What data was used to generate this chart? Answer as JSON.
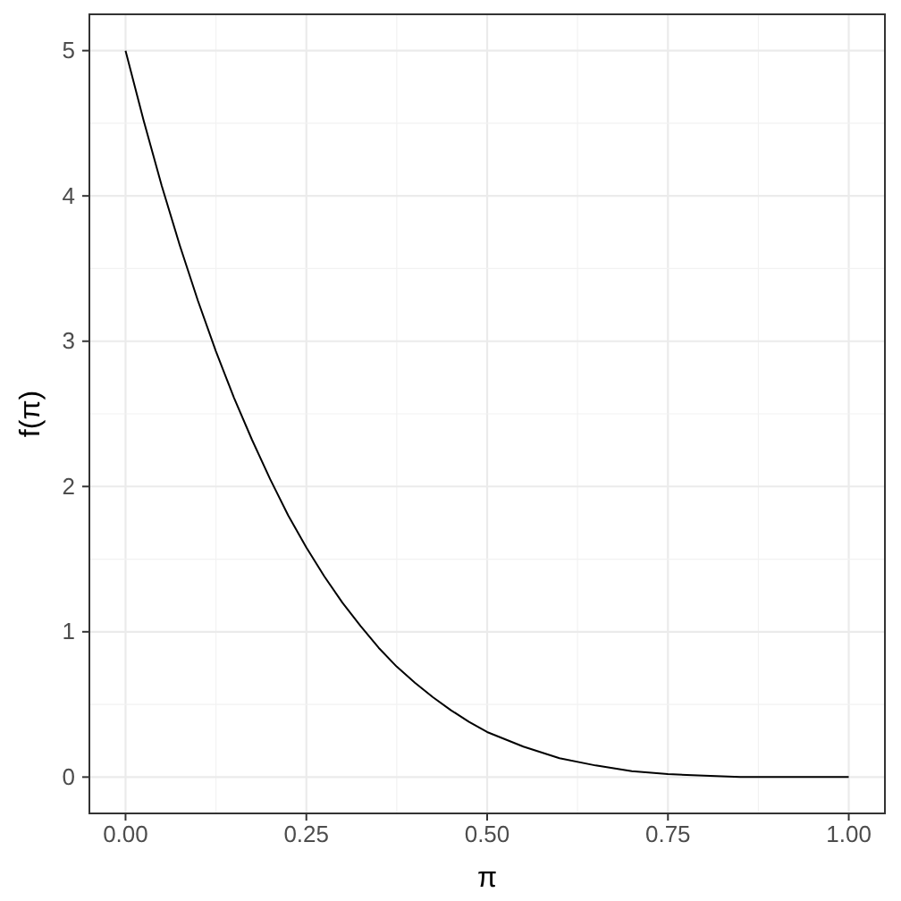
{
  "chart_data": {
    "type": "line",
    "xlabel": "π",
    "ylabel": "f(π)",
    "x": [
      0,
      0.025,
      0.05,
      0.075,
      0.1,
      0.125,
      0.15,
      0.175,
      0.2,
      0.225,
      0.25,
      0.275,
      0.3,
      0.325,
      0.35,
      0.375,
      0.4,
      0.425,
      0.45,
      0.475,
      0.5,
      0.55,
      0.6,
      0.65,
      0.7,
      0.75,
      0.8,
      0.85,
      0.9,
      0.95,
      1
    ],
    "series": [
      {
        "color": "#000000",
        "values": [
          5,
          4.52,
          4.07,
          3.66,
          3.28,
          2.93,
          2.61,
          2.32,
          2.05,
          1.8,
          1.58,
          1.38,
          1.2,
          1.04,
          0.89,
          0.76,
          0.65,
          0.55,
          0.46,
          0.38,
          0.31,
          0.21,
          0.13,
          0.08,
          0.04,
          0.02,
          0.01,
          0,
          0,
          0,
          0
        ]
      }
    ],
    "xlim": [
      -0.05,
      1.05
    ],
    "ylim": [
      -0.25,
      5.25
    ],
    "xticks": [
      {
        "value": 0,
        "label": "0.00"
      },
      {
        "value": 0.25,
        "label": "0.25"
      },
      {
        "value": 0.5,
        "label": "0.50"
      },
      {
        "value": 0.75,
        "label": "0.75"
      },
      {
        "value": 1,
        "label": "1.00"
      }
    ],
    "yticks": [
      0,
      1,
      2,
      3,
      4,
      5
    ],
    "grid": true,
    "line_style": "solid",
    "marker": "none"
  }
}
